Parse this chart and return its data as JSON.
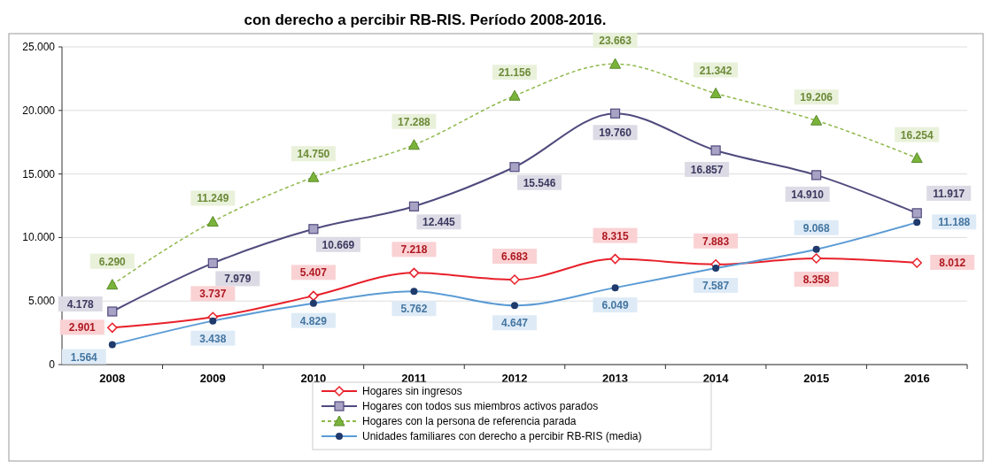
{
  "chart_data": {
    "type": "line",
    "title": "con derecho a percibir RB-RIS. Período 2008-2016.",
    "categories": [
      "2008",
      "2009",
      "2010",
      "2011",
      "2012",
      "2013",
      "2014",
      "2015",
      "2016"
    ],
    "series": [
      {
        "name": "Hogares sin ingresos",
        "color": "#e8202a",
        "marker": "diamond",
        "line_style": "solid",
        "values": [
          2901,
          3737,
          5407,
          7218,
          6683,
          8315,
          7883,
          8358,
          8012
        ],
        "value_labels": [
          "2.901",
          "3.737",
          "5.407",
          "7.218",
          "6.683",
          "8.315",
          "7.883",
          "8.358",
          "8.012"
        ]
      },
      {
        "name": "Hogares con todos sus miembros activos parados",
        "color": "#4f4a7d",
        "marker": "square",
        "line_style": "solid",
        "values": [
          4178,
          7979,
          10669,
          12445,
          15546,
          19760,
          16857,
          14910,
          11917
        ],
        "value_labels": [
          "4.178",
          "7.979",
          "10.669",
          "12.445",
          "15.546",
          "19.760",
          "16.857",
          "14.910",
          "11.917"
        ]
      },
      {
        "name": "Hogares con la persona de referencia parada",
        "color": "#8fb84a",
        "marker": "triangle",
        "line_style": "dashed",
        "values": [
          6290,
          11249,
          14750,
          17288,
          21156,
          23663,
          21342,
          19206,
          16254
        ],
        "value_labels": [
          "6.290",
          "11.249",
          "14.750",
          "17.288",
          "21.156",
          "23.663",
          "21.342",
          "19.206",
          "16.254"
        ]
      },
      {
        "name": "Unidades familiares con derecho a percibir RB-RIS (media)",
        "color": "#5b9bd5",
        "marker": "circle",
        "line_style": "solid",
        "values": [
          1564,
          3438,
          4829,
          5762,
          4647,
          6049,
          7587,
          9068,
          11188
        ],
        "value_labels": [
          "1.564",
          "3.438",
          "4.829",
          "5.762",
          "4.647",
          "6.049",
          "7.587",
          "9.068",
          "11.188"
        ]
      }
    ],
    "ylim": [
      0,
      25000
    ],
    "yticks": [
      0,
      {
        "value": 5000,
        "label": "5.000"
      },
      {
        "value": 10000,
        "label": "10.000"
      },
      {
        "value": 15000,
        "label": "15.000"
      },
      {
        "value": 20000,
        "label": "20.000"
      },
      {
        "value": 25000,
        "label": "25.000"
      }
    ],
    "grid": "y",
    "legend": "bottom"
  }
}
